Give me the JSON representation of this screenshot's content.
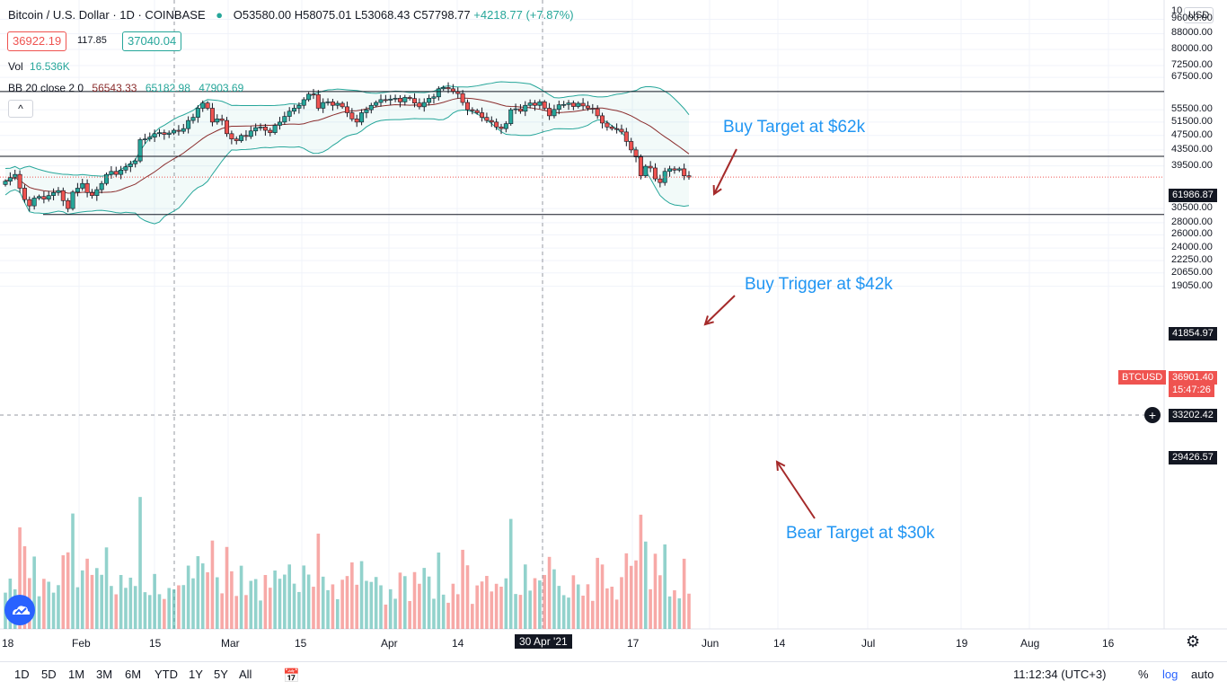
{
  "header": {
    "title": "Bitcoin / U.S. Dollar · 1D · COINBASE",
    "open": "O53580.00",
    "high": "H58075.01",
    "low": "L53068.43",
    "close": "C57798.77",
    "change": "+4218.77 (+7.87%)",
    "sell_price": "36922.19",
    "spread": "117.85",
    "buy_price": "37040.04",
    "volume_label": "Vol",
    "volume_value": "16.536K",
    "bb_label": "BB 20 close 2 0",
    "bb_basis": "56543.33",
    "bb_upper": "65182.98",
    "bb_lower": "47903.69",
    "collapse_icon": "^",
    "currency": "USD"
  },
  "annotations": {
    "buy_target": "Buy Target at $62k",
    "buy_trigger": "Buy Trigger at $42k",
    "bear_target": "Bear Target at $30k"
  },
  "price_axis": {
    "ticks": [
      "96000.00",
      "88000.00",
      "80000.00",
      "72500.00",
      "67500.00",
      "55500.00",
      "51500.00",
      "47500.00",
      "43500.00",
      "39500.00",
      "30500.00",
      "28000.00",
      "26000.00",
      "24000.00",
      "22250.00",
      "20650.00",
      "19050.00"
    ],
    "top_tick": "10",
    "level_labels": {
      "resistance": "61986.87",
      "trigger": "41854.97",
      "support": "29426.57",
      "crosshair": "33202.42"
    },
    "current_price": "36901.40",
    "countdown": "15:47:26",
    "symbol": "BTCUSD"
  },
  "time_axis": [
    "18",
    "Feb",
    "15",
    "Mar",
    "15",
    "Apr",
    "14",
    "30 Apr '21",
    "17",
    "Jun",
    "14",
    "Jul",
    "19",
    "Aug",
    "16"
  ],
  "toolbar": {
    "ranges": [
      "1D",
      "5D",
      "1M",
      "3M",
      "6M",
      "YTD",
      "1Y",
      "5Y",
      "All"
    ],
    "time": "11:12:34 (UTC+3)",
    "percent": "%",
    "log": "log",
    "auto": "auto"
  },
  "colors": {
    "up": "#26a69a",
    "down": "#ef5350",
    "accent": "#2196f3",
    "bb_band": "#26a69a",
    "bb_basis": "#8b2e2e",
    "level_line": "#131722"
  },
  "chart_data": {
    "type": "candlestick",
    "symbol": "BTCUSD",
    "timeframe": "1D",
    "y_scale": "log",
    "ylim": [
      17000,
      100000
    ],
    "levels": [
      61986.87,
      41854.97,
      29426.57
    ],
    "last_price": 36901.4,
    "closes": [
      36000,
      36800,
      37500,
      34500,
      32200,
      31000,
      32500,
      32800,
      32300,
      33000,
      33600,
      34000,
      32000,
      30500,
      33700,
      34500,
      35500,
      33600,
      33000,
      34200,
      35500,
      37500,
      38200,
      37500,
      38500,
      39300,
      40000,
      40700,
      46300,
      46500,
      47000,
      48000,
      48300,
      47800,
      48200,
      49000,
      48700,
      49500,
      52000,
      53000,
      56000,
      57800,
      56000,
      51500,
      52500,
      52000,
      48000,
      46500,
      46000,
      47500,
      47200,
      48800,
      49800,
      50000,
      49000,
      48300,
      50500,
      51500,
      53300,
      55000,
      56000,
      57000,
      59000,
      61000,
      60800,
      56000,
      58000,
      58200,
      57000,
      57700,
      56500,
      54500,
      52500,
      51500,
      54500,
      55500,
      57000,
      58000,
      59000,
      58800,
      59200,
      59500,
      58200,
      59800,
      59400,
      57800,
      56500,
      58000,
      59500,
      60000,
      63000,
      63500,
      63000,
      62000,
      61200,
      58000,
      55500,
      55200,
      54500,
      53000,
      52000,
      51500,
      50000,
      49500,
      51000,
      55500,
      55800,
      55000,
      57000,
      57800,
      57000,
      58200,
      56000,
      53500,
      55600,
      57200,
      57300,
      57800,
      56600,
      57700,
      56800,
      56000,
      55800,
      53500,
      51200,
      50000,
      49500,
      49300,
      48500,
      45800,
      43500,
      41700,
      37200,
      39400,
      39000,
      36500,
      35700,
      38200,
      38800,
      38500,
      38800,
      37200,
      36901
    ]
  }
}
